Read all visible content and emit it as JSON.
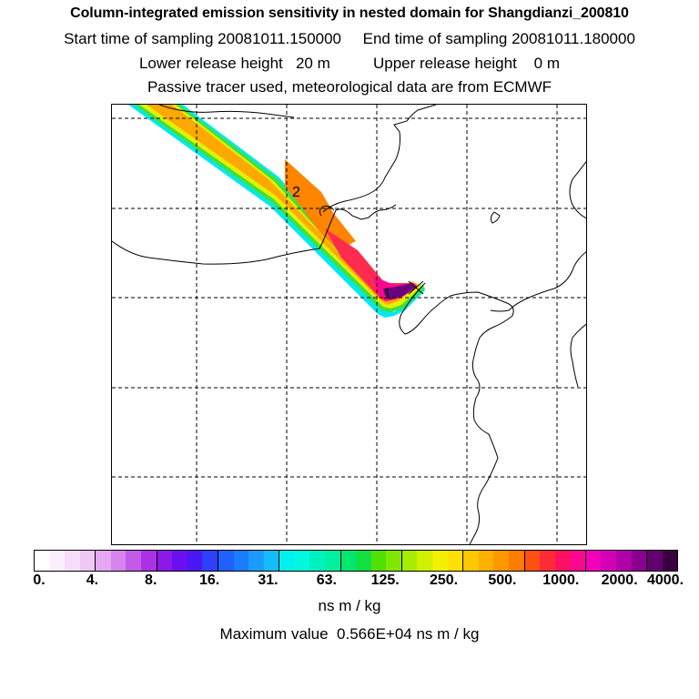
{
  "header": {
    "title": "Column-integrated emission sensitivity in nested domain for Shangdianzi_200810",
    "sampling_line": "Start time of sampling 20081011.150000     End time of sampling 20081011.180000",
    "release_line": "Lower release height   20 m          Upper release height    0 m",
    "tracer_line": "Passive tracer used, meteorological data are from ECMWF"
  },
  "map": {
    "markers": [
      {
        "label": "1"
      },
      {
        "label": "2"
      }
    ],
    "receptor_symbol": "x-marker-icon"
  },
  "colorbar": {
    "colors": [
      "#ffffff",
      "#fbeefc",
      "#f6ddf9",
      "#f0c8f6",
      "#e6a8f2",
      "#d884ee",
      "#c35ae8",
      "#ab30e6",
      "#8d18ea",
      "#6a10f0",
      "#4a18f5",
      "#3040fa",
      "#2060ff",
      "#1a7cff",
      "#1a9cff",
      "#14bcfa",
      "#00f0ee",
      "#00f8dc",
      "#00f0c0",
      "#00f0a0",
      "#00e870",
      "#10e040",
      "#50e000",
      "#80e800",
      "#a8ec00",
      "#d0f000",
      "#f2f000",
      "#ffe000",
      "#ffc800",
      "#ffb000",
      "#ff9800",
      "#ff7c00",
      "#ff5010",
      "#ff2c38",
      "#ff1060",
      "#ff0890",
      "#f000b8",
      "#d400b8",
      "#b000a8",
      "#8a0090",
      "#620070",
      "#3a0040"
    ],
    "tick_labels": [
      "0.",
      "4.",
      "8.",
      "16.",
      "31.",
      "63.",
      "125.",
      "250.",
      "500.",
      "1000.",
      "2000.",
      "4000."
    ],
    "unit_label": "ns m / kg"
  },
  "footer": {
    "max_value": "Maximum value  0.566E+04 ns m / kg"
  }
}
